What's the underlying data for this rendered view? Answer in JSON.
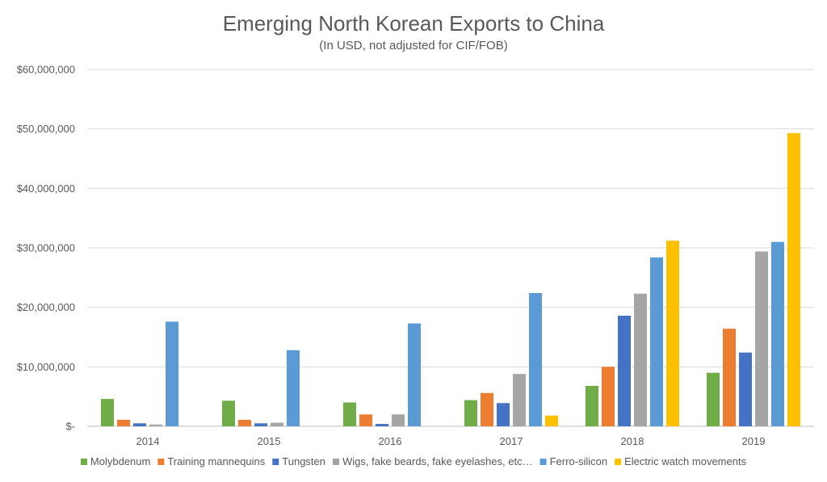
{
  "chart_data": {
    "type": "bar",
    "title": "Emerging North Korean Exports to China",
    "subtitle": "(In USD, not adjusted for CIF/FOB)",
    "xlabel": "",
    "ylabel": "",
    "categories": [
      "2014",
      "2015",
      "2016",
      "2017",
      "2018",
      "2019"
    ],
    "ylim": [
      0,
      60000000
    ],
    "yticks": [
      0,
      10000000,
      20000000,
      30000000,
      40000000,
      50000000,
      60000000
    ],
    "ytick_labels": [
      "$-",
      "$10,000,000",
      "$20,000,000",
      "$30,000,000",
      "$40,000,000",
      "$50,000,000",
      "$60,000,000"
    ],
    "grid": true,
    "legend_position": "bottom",
    "series": [
      {
        "name": "Molybdenum",
        "color": "#70ad47",
        "values": [
          4600000,
          4300000,
          4000000,
          4400000,
          6800000,
          9000000
        ]
      },
      {
        "name": "Training mannequins",
        "color": "#ed7d31",
        "values": [
          1100000,
          1100000,
          2000000,
          5600000,
          10000000,
          16400000
        ]
      },
      {
        "name": "Tungsten",
        "color": "#4472c4",
        "values": [
          500000,
          500000,
          400000,
          3900000,
          18600000,
          12400000
        ]
      },
      {
        "name": "Wigs, fake beards, fake eyelashes, etc…",
        "color": "#a5a5a5",
        "values": [
          300000,
          600000,
          2000000,
          8800000,
          22300000,
          29400000
        ]
      },
      {
        "name": "Ferro-silicon",
        "color": "#5b9bd5",
        "values": [
          17600000,
          12800000,
          17300000,
          22400000,
          28400000,
          31000000
        ]
      },
      {
        "name": "Electric watch movements",
        "color": "#ffc000",
        "values": [
          0,
          0,
          0,
          1800000,
          31200000,
          49300000
        ]
      }
    ]
  }
}
